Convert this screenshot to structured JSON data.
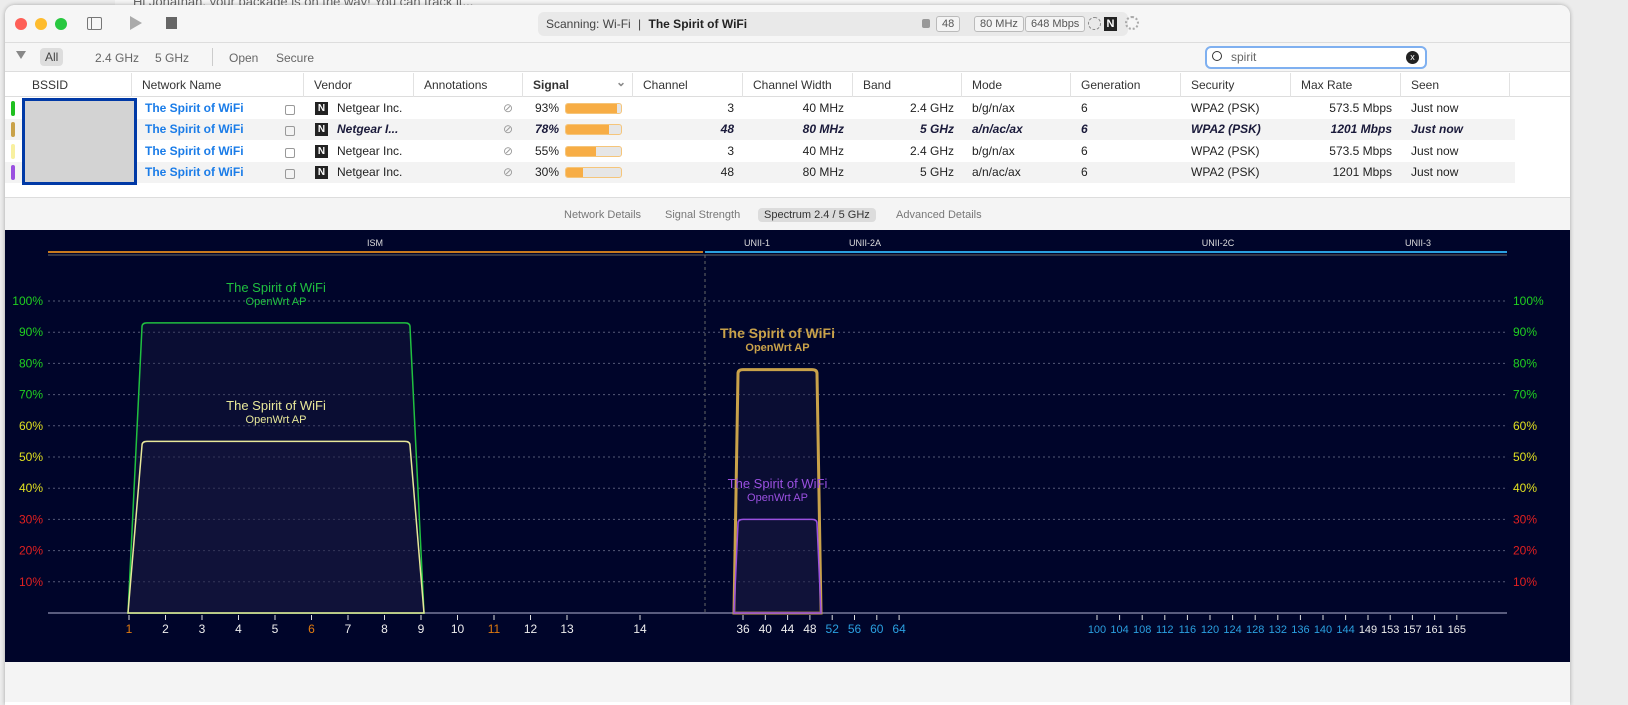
{
  "background_window": {
    "text": "Hi Jonathan, your package is on the way! You can track it..."
  },
  "titlebar": {
    "scanning": "Scanning: Wi-Fi",
    "separator": "|",
    "network": "The Spirit of WiFi",
    "channel": "48",
    "width": "80 MHz",
    "rate": "648 Mbps",
    "vendor_badge": "N",
    "icons": [
      "sidebar-toggle-icon",
      "play-icon",
      "stop-icon",
      "lock-icon",
      "wifi-gen-icon",
      "spinner-icon"
    ]
  },
  "filters": {
    "items": [
      "All",
      "2.4 GHz",
      "5 GHz",
      "Open",
      "Secure"
    ],
    "selected": "All"
  },
  "search": {
    "value": "spirit"
  },
  "table": {
    "columns": [
      "BSSID",
      "Network Name",
      "Vendor",
      "Annotations",
      "Signal",
      "Channel",
      "Channel Width",
      "Band",
      "Mode",
      "Generation",
      "Security",
      "Max Rate",
      "Seen"
    ],
    "sorted_by": "Signal",
    "rows": [
      {
        "color": "#20c020",
        "name": "The Spirit of WiFi",
        "vendor": "Netgear Inc.",
        "signal": "93%",
        "signal_pct": 93,
        "channel": "3",
        "width": "40 MHz",
        "band": "2.4 GHz",
        "mode": "b/g/n/ax",
        "generation": "6",
        "security": "WPA2 (PSK)",
        "max_rate": "573.5 Mbps",
        "seen": "Just now",
        "current": false
      },
      {
        "color": "#c9a24a",
        "name": "The Spirit of WiFi",
        "vendor": "Netgear I...",
        "signal": "78%",
        "signal_pct": 78,
        "channel": "48",
        "width": "80 MHz",
        "band": "5 GHz",
        "mode": "a/n/ac/ax",
        "generation": "6",
        "security": "WPA2 (PSK)",
        "max_rate": "1201 Mbps",
        "seen": "Just now",
        "current": true
      },
      {
        "color": "#f8f0a0",
        "name": "The Spirit of WiFi",
        "vendor": "Netgear Inc.",
        "signal": "55%",
        "signal_pct": 55,
        "channel": "3",
        "width": "40 MHz",
        "band": "2.4 GHz",
        "mode": "b/g/n/ax",
        "generation": "6",
        "security": "WPA2 (PSK)",
        "max_rate": "573.5 Mbps",
        "seen": "Just now",
        "current": false
      },
      {
        "color": "#9a50e0",
        "name": "The Spirit of WiFi",
        "vendor": "Netgear Inc.",
        "signal": "30%",
        "signal_pct": 30,
        "channel": "48",
        "width": "80 MHz",
        "band": "5 GHz",
        "mode": "a/n/ac/ax",
        "generation": "6",
        "security": "WPA2 (PSK)",
        "max_rate": "1201 Mbps",
        "seen": "Just now",
        "current": false
      }
    ]
  },
  "tabs": {
    "items": [
      "Network Details",
      "Signal Strength",
      "Spectrum 2.4 / 5 GHz",
      "Advanced Details"
    ],
    "selected": "Spectrum 2.4 / 5 GHz"
  },
  "chart_data": {
    "type": "area",
    "bands": [
      {
        "label": "ISM",
        "color": "#c87a1e"
      },
      {
        "label": "UNII-1",
        "color": "#2aa0e0"
      },
      {
        "label": "UNII-2A",
        "color": "#2aa0e0"
      },
      {
        "label": "UNII-2C",
        "color": "#2aa0e0"
      },
      {
        "label": "UNII-3",
        "color": "#2aa0e0"
      }
    ],
    "y_ticks": [
      "10%",
      "20%",
      "30%",
      "40%",
      "50%",
      "60%",
      "70%",
      "80%",
      "90%",
      "100%"
    ],
    "ylim": [
      0,
      100
    ],
    "x_ticks_24": [
      "1",
      "2",
      "3",
      "4",
      "5",
      "6",
      "7",
      "8",
      "9",
      "10",
      "11",
      "12",
      "13",
      "14"
    ],
    "x_ticks_5": [
      "36",
      "40",
      "44",
      "48",
      "52",
      "56",
      "60",
      "64",
      "100",
      "104",
      "108",
      "112",
      "116",
      "120",
      "124",
      "128",
      "132",
      "136",
      "140",
      "144",
      "149",
      "153",
      "157",
      "161",
      "165"
    ],
    "series": [
      {
        "name": "The Spirit of WiFi",
        "subtitle": "OpenWrt AP",
        "color": "#20c040",
        "signal": 93,
        "channel_from": 1,
        "channel_to": 9,
        "band": "2.4"
      },
      {
        "name": "The Spirit of WiFi",
        "subtitle": "OpenWrt AP",
        "color": "#e8e89a",
        "signal": 55,
        "channel_from": 1,
        "channel_to": 9,
        "band": "2.4"
      },
      {
        "name": "The Spirit of WiFi",
        "subtitle": "OpenWrt AP",
        "color": "#c9a24a",
        "signal": 78,
        "channel_from": 34,
        "channel_to": 50,
        "band": "5",
        "bold": true
      },
      {
        "name": "The Spirit of WiFi",
        "subtitle": "OpenWrt AP",
        "color": "#9a50e0",
        "signal": 30,
        "channel_from": 34,
        "channel_to": 50,
        "band": "5"
      }
    ]
  }
}
